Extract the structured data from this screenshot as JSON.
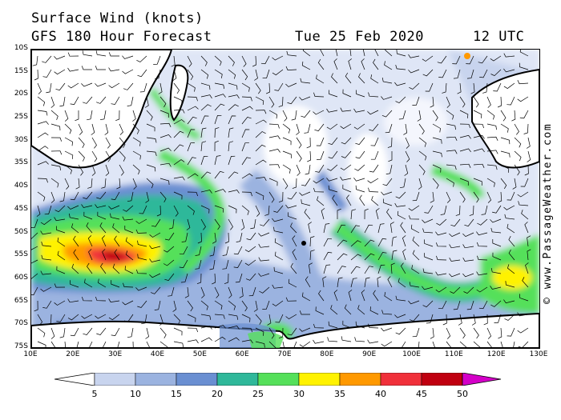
{
  "title": {
    "line1": "Surface Wind (knots)",
    "line2": "GFS 180 Hour Forecast",
    "date": "Tue 25 Feb 2020",
    "time": "12 UTC"
  },
  "credit": "© www.PassageWeather.com",
  "map": {
    "lat_labels": [
      "10S",
      "15S",
      "20S",
      "25S",
      "30S",
      "35S",
      "40S",
      "45S",
      "50S",
      "55S",
      "60S",
      "65S",
      "70S",
      "75S"
    ],
    "lon_labels": [
      "10E",
      "20E",
      "30E",
      "40E",
      "50E",
      "60E",
      "70E",
      "80E",
      "90E",
      "100E",
      "110E",
      "120E",
      "130E"
    ],
    "lat_range": [
      -10,
      -75
    ],
    "lon_range": [
      10,
      130
    ]
  },
  "legend": {
    "labels": [
      "5",
      "10",
      "15",
      "20",
      "25",
      "30",
      "35",
      "40",
      "45",
      "50"
    ],
    "colors": [
      "#ffffff",
      "#c8d4ee",
      "#9bb3e0",
      "#6a8fd2",
      "#2fb89a",
      "#55e05a",
      "#fff200",
      "#ff9900",
      "#f0303a",
      "#c00010",
      "#d400c8"
    ]
  }
}
